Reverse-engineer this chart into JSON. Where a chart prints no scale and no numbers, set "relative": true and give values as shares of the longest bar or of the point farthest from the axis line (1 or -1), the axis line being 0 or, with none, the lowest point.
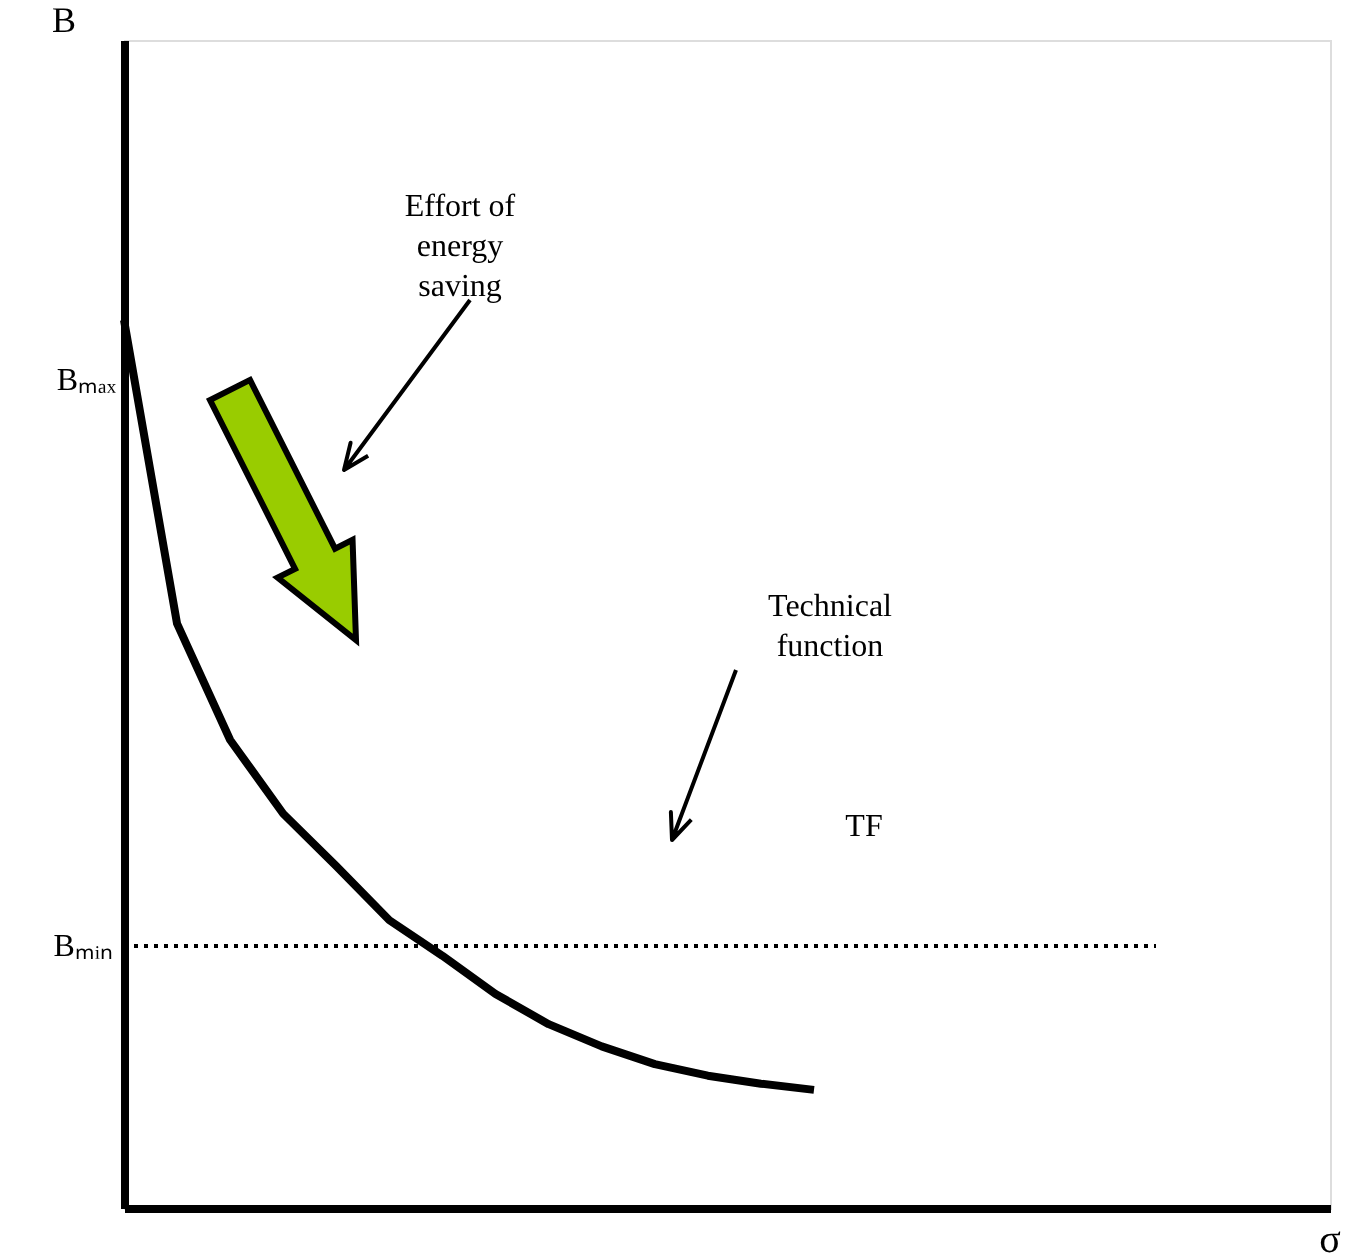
{
  "chart_data": {
    "type": "line",
    "relative": true,
    "categories": [
      null,
      null,
      null,
      null,
      null,
      null,
      null,
      null,
      null,
      null,
      null,
      null,
      null,
      null
    ],
    "series": [
      {
        "color": "#000000",
        "values": [
          1.0,
          0.658,
          0.527,
          0.444,
          0.385,
          0.324,
          0.284,
          0.241,
          0.207,
          0.182,
          0.162,
          0.149,
          0.14,
          0.133
        ]
      }
    ],
    "tick_labels": false,
    "grid": false,
    "marker": "none",
    "line_style": "solid",
    "ref_lines": [
      {
        "axis": "y",
        "value": 0.295,
        "label": "Bₘᵢₙ",
        "line_style": "dotted",
        "color": "#000000"
      }
    ],
    "annotations": [
      "B",
      "σ",
      "Bₘₐₓ",
      "Effort of energy saving",
      "Technical function",
      "TF"
    ]
  }
}
